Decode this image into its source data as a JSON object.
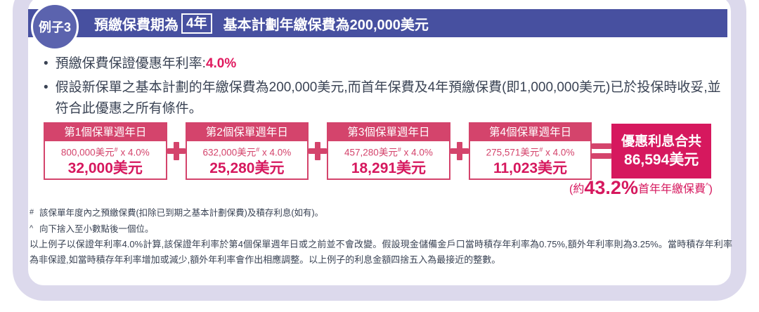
{
  "colors": {
    "header_indigo": "#4750a0",
    "badge_purple": "#5b63ae",
    "frame_lavender": "#dcd9ec",
    "rose": "#d4446c",
    "crimson": "#d6185e",
    "body_text": "#3a4354"
  },
  "header": {
    "badge": "例子3",
    "title_prefix": "預繳保費期為",
    "title_boxed": "4年",
    "title_suffix": "基本計劃年繳保費為200,000美元"
  },
  "bullets": [
    {
      "prefix": "預繳保費保證優惠年利率:",
      "highlight": "4.0%"
    },
    {
      "text": "假設新保單之基本計劃的年繳保費為200,000美元,而首年保費及4年預繳保費(即1,000,000美元)已於投保時收妥,並符合此優惠之所有條件。"
    }
  ],
  "calculation": {
    "boxes": [
      {
        "header": "第1個保單週年日",
        "base": "800,000美元",
        "marker": "#",
        "multiplier": " x 4.0%",
        "result": "32,000美元"
      },
      {
        "header": "第2個保單週年日",
        "base": "632,000美元",
        "marker": "#",
        "multiplier": " x 4.0%",
        "result": "25,280美元"
      },
      {
        "header": "第3個保單週年日",
        "base": "457,280美元",
        "marker": "#",
        "multiplier": " x 4.0%",
        "result": "18,291美元"
      },
      {
        "header": "第4個保單週年日",
        "base": "275,571美元",
        "marker": "#",
        "multiplier": " x 4.0%",
        "result": "11,023美元"
      }
    ],
    "total": {
      "line1": "優惠利息合共",
      "line2": "86,594美元"
    },
    "caption": {
      "open": "(約",
      "percent": "43.2%",
      "suffix": "首年年繳保費",
      "marker": "^",
      "close": ")"
    }
  },
  "footnotes": [
    {
      "marker": "#",
      "text": "該保單年度內之預繳保費(扣除已到期之基本計劃保費)及積存利息(如有)。"
    },
    {
      "marker": "^",
      "text": "向下捨入至小數點後一個位。"
    }
  ],
  "disclaimer": "以上例子以保證年利率4.0%計算,該保證年利率於第4個保單週年日或之前並不會改變。假設現金儲備金戶口當時積存年利率為0.75%,額外年利率則為3.25%。當時積存年利率為非保證,如當時積存年利率增加或減少,額外年利率會作出相應調整。以上例子的利息金額四捨五入為最接近的整數。"
}
